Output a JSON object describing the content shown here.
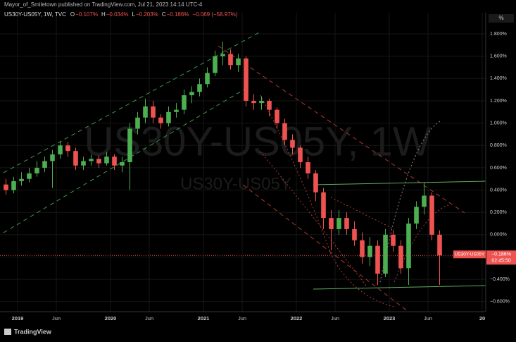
{
  "chart_data": {
    "type": "candlestick",
    "byline": "Mayor_of_Smiletown published on TradingView.com, Jul 21, 2023 14:14 UTC-4",
    "symbol_line": "US30Y-US05Y, 1W, TVC",
    "ohlc_header": [
      "O",
      "−0.107%",
      "H",
      "−0.034%",
      "L",
      "−0.203%",
      "C",
      "−0.186%",
      "−0.069 (−58.97%)"
    ],
    "watermark": "US30Y-US05Y, 1W",
    "watermark_sub": "US30Y-US05Y",
    "axis_unit": "%",
    "brand": "TradingView",
    "up_color": "#4caf50",
    "down_color": "#ef5350",
    "grid": true,
    "x": [
      "2018-11",
      "2018-12",
      "2019-01",
      "2019-02",
      "2019-03",
      "2019-04",
      "2019-05",
      "2019-06",
      "2019-07",
      "2019-08",
      "2019-09",
      "2019-10",
      "2019-11",
      "2019-12",
      "2020-01",
      "2020-02",
      "2020-03",
      "2020-04",
      "2020-05",
      "2020-06",
      "2020-07",
      "2020-08",
      "2020-09",
      "2020-10",
      "2020-11",
      "2020-12",
      "2021-01",
      "2021-02",
      "2021-03",
      "2021-04",
      "2021-05",
      "2021-06",
      "2021-07",
      "2021-08",
      "2021-09",
      "2021-10",
      "2021-11",
      "2021-12",
      "2022-01",
      "2022-02",
      "2022-03",
      "2022-04",
      "2022-05",
      "2022-06",
      "2022-07",
      "2022-08",
      "2022-09",
      "2022-10",
      "2022-11",
      "2022-12",
      "2023-01",
      "2023-02",
      "2023-03",
      "2023-04",
      "2023-05",
      "2023-06",
      "2023-07"
    ],
    "open": [
      0.45,
      0.4,
      0.48,
      0.5,
      0.55,
      0.6,
      0.66,
      0.72,
      0.8,
      0.75,
      0.62,
      0.66,
      0.68,
      0.64,
      0.7,
      0.62,
      0.65,
      0.95,
      1.05,
      1.15,
      1.05,
      1.0,
      1.1,
      1.12,
      1.25,
      1.28,
      1.35,
      1.45,
      1.6,
      1.62,
      1.52,
      1.58,
      1.2,
      1.18,
      1.2,
      1.12,
      1.0,
      0.85,
      0.78,
      0.65,
      0.55,
      0.38,
      0.15,
      0.05,
      0.15,
      0.05,
      -0.05,
      -0.2,
      -0.1,
      -0.35,
      0.0,
      -0.1,
      -0.3,
      0.1,
      0.25,
      0.35,
      0.0
    ],
    "high": [
      0.5,
      0.52,
      0.56,
      0.6,
      0.66,
      0.7,
      0.76,
      0.84,
      0.83,
      0.78,
      0.7,
      0.72,
      0.71,
      0.74,
      0.72,
      0.7,
      1.0,
      1.1,
      1.22,
      1.2,
      1.08,
      1.15,
      1.18,
      1.3,
      1.33,
      1.4,
      1.5,
      1.65,
      1.73,
      1.66,
      1.62,
      1.6,
      1.26,
      1.24,
      1.22,
      1.14,
      1.04,
      0.9,
      0.8,
      0.7,
      0.58,
      0.42,
      0.22,
      0.22,
      0.2,
      0.12,
      0.02,
      -0.02,
      -0.05,
      0.05,
      0.04,
      -0.05,
      0.15,
      0.3,
      0.47,
      0.38,
      0.04
    ],
    "low": [
      0.36,
      0.37,
      0.44,
      0.47,
      0.52,
      0.56,
      0.42,
      0.68,
      0.7,
      0.58,
      0.58,
      0.62,
      0.6,
      0.62,
      0.58,
      0.56,
      0.4,
      0.9,
      1.0,
      1.0,
      0.95,
      0.97,
      1.05,
      1.08,
      1.18,
      1.24,
      1.32,
      1.42,
      1.52,
      1.48,
      1.46,
      1.15,
      1.12,
      1.12,
      1.06,
      0.95,
      0.8,
      0.72,
      0.6,
      0.5,
      0.3,
      0.05,
      -0.14,
      0.0,
      0.0,
      -0.1,
      -0.26,
      -0.28,
      -0.45,
      -0.38,
      -0.15,
      -0.35,
      -0.45,
      0.05,
      0.18,
      -0.05,
      -0.45
    ],
    "close": [
      0.4,
      0.48,
      0.5,
      0.55,
      0.6,
      0.66,
      0.72,
      0.8,
      0.75,
      0.62,
      0.66,
      0.68,
      0.64,
      0.7,
      0.62,
      0.65,
      0.95,
      1.05,
      1.15,
      1.05,
      1.0,
      1.1,
      1.12,
      1.25,
      1.28,
      1.35,
      1.45,
      1.6,
      1.62,
      1.52,
      1.58,
      1.2,
      1.18,
      1.2,
      1.12,
      1.0,
      0.85,
      0.78,
      0.65,
      0.55,
      0.38,
      0.15,
      0.05,
      0.15,
      0.05,
      -0.05,
      -0.2,
      -0.1,
      -0.35,
      0.0,
      -0.1,
      -0.3,
      0.1,
      0.25,
      0.35,
      0.0,
      -0.186
    ],
    "last_price": {
      "value": -0.186,
      "label": "−0.186%",
      "symbol": "US30Y-US05Y",
      "countdown": "02:45:50"
    },
    "xlim": [
      "2018-11",
      "2024-01"
    ],
    "xticks": [
      {
        "value": "2019-01",
        "label": "2019"
      },
      {
        "value": "2019-06",
        "label": "Jun"
      },
      {
        "value": "2020-01",
        "label": "2020"
      },
      {
        "value": "2020-06",
        "label": "Jun"
      },
      {
        "value": "2021-01",
        "label": "2021"
      },
      {
        "value": "2021-06",
        "label": "Jun"
      },
      {
        "value": "2022-01",
        "label": "2022"
      },
      {
        "value": "2022-06",
        "label": "Jun"
      },
      {
        "value": "2023-01",
        "label": "2023"
      },
      {
        "value": "2023-06",
        "label": "Jun"
      },
      {
        "value": "2024-01",
        "label": "20"
      }
    ],
    "ylim": [
      -0.69,
      1.99
    ],
    "yticks": [
      {
        "value": 1.8,
        "label": "1.800%"
      },
      {
        "value": 1.6,
        "label": "1.600%"
      },
      {
        "value": 1.4,
        "label": "1.400%"
      },
      {
        "value": 1.2,
        "label": "1.200%"
      },
      {
        "value": 1.0,
        "label": "1.000%"
      },
      {
        "value": 0.8,
        "label": "0.800%"
      },
      {
        "value": 0.6,
        "label": "0.600%"
      },
      {
        "value": 0.4,
        "label": "0.400%"
      },
      {
        "value": 0.2,
        "label": "0.200%"
      },
      {
        "value": 0,
        "label": "0.000%"
      },
      {
        "value": -0.2,
        "label": "−0.200%"
      },
      {
        "value": -0.4,
        "label": "−0.400%"
      },
      {
        "value": -0.6,
        "label": "−0.600%"
      }
    ]
  }
}
